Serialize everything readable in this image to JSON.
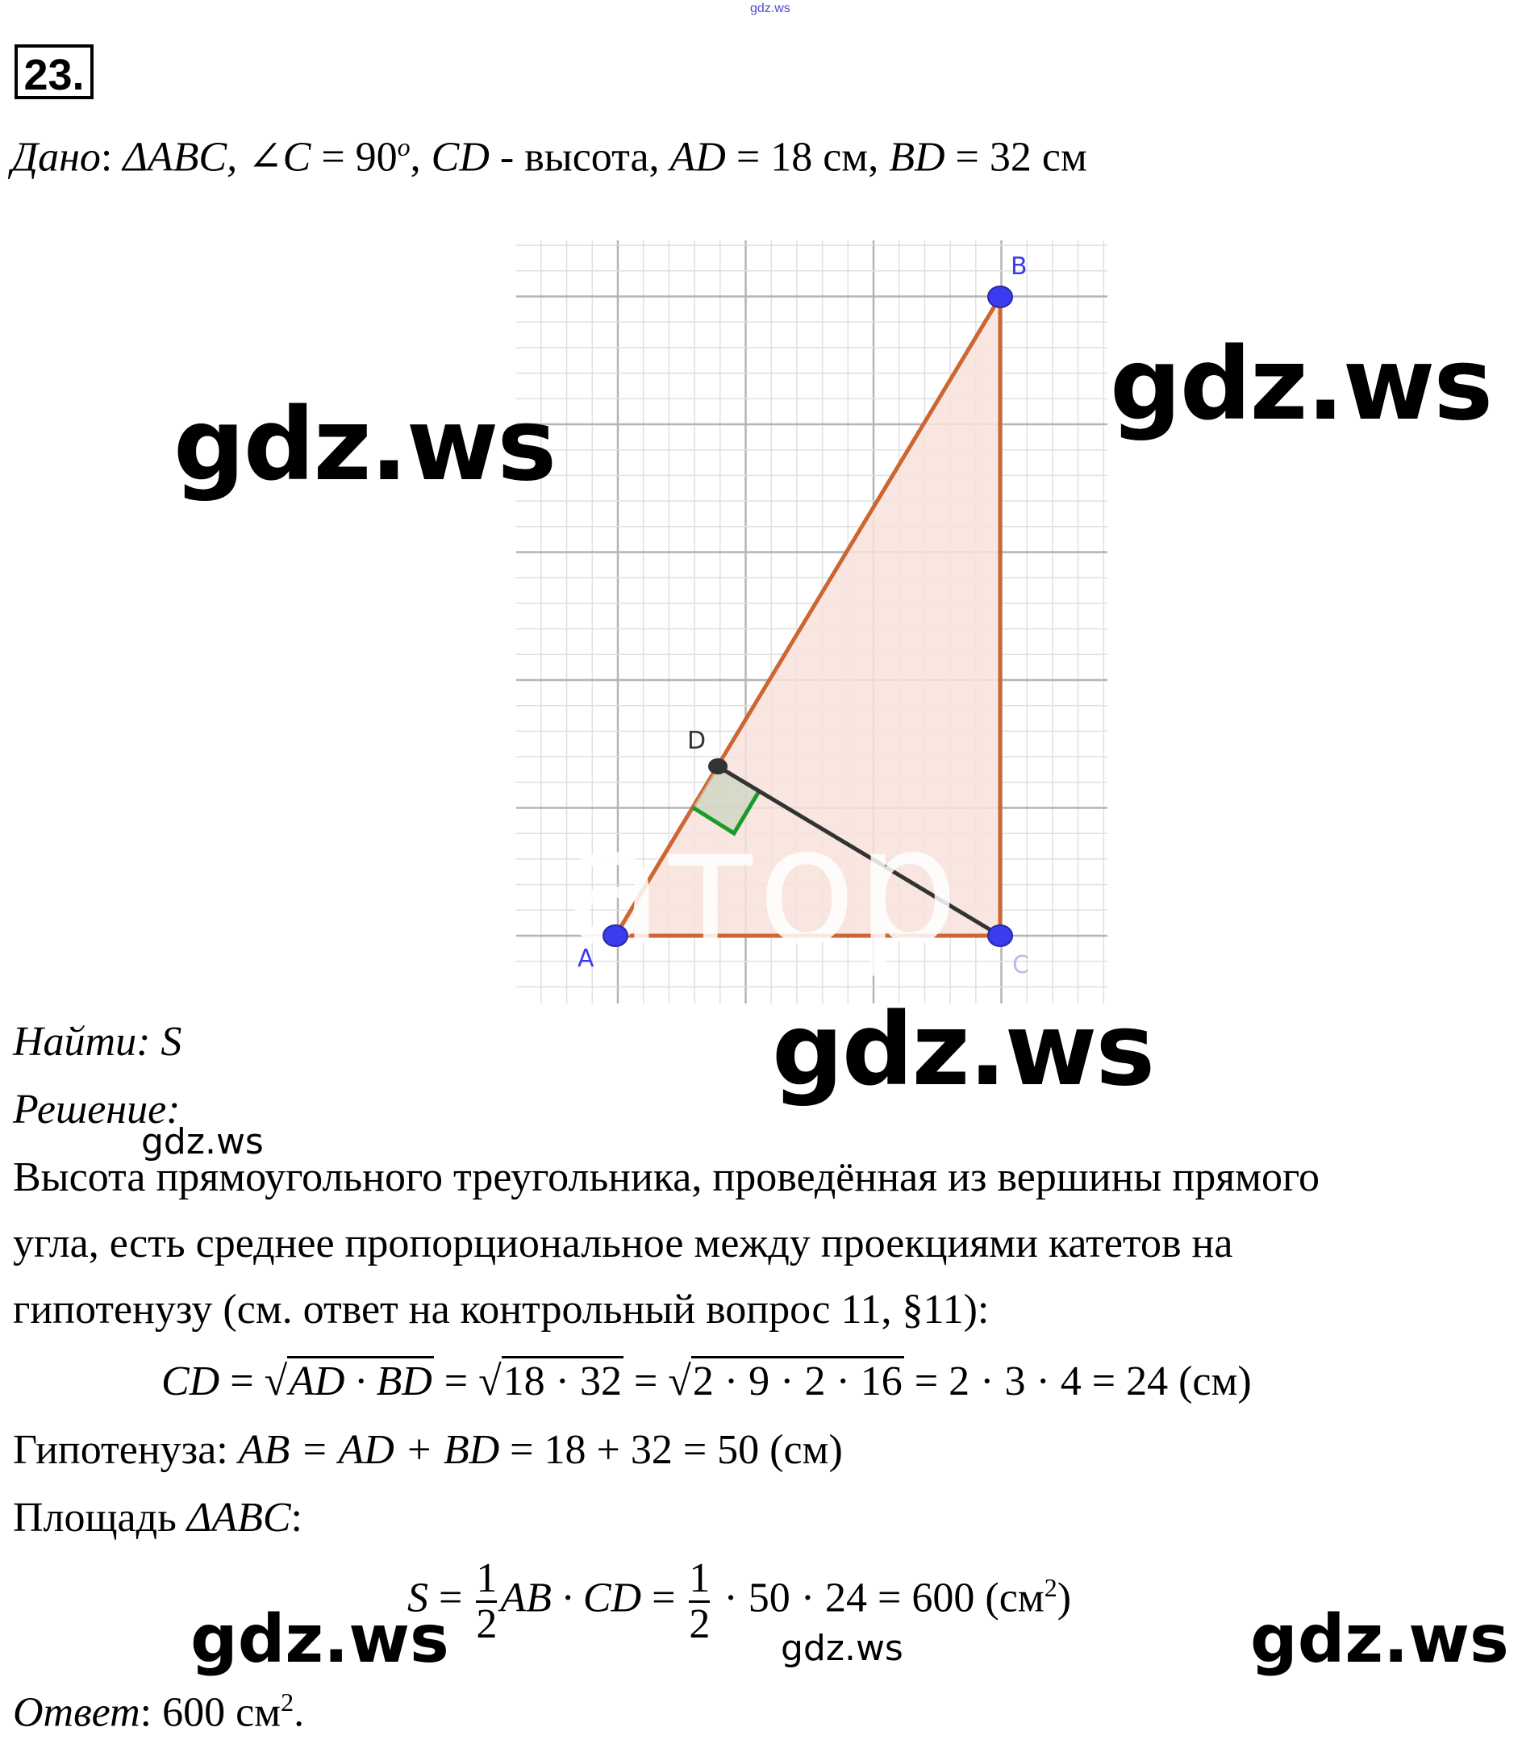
{
  "watermark_top": "gdz.ws",
  "problem_number": "23.",
  "given": {
    "label": "Дано",
    "text_parts": [
      ": ",
      "ΔABC, ∠C",
      " = 90",
      "o",
      ", ",
      "CD",
      " - высота, ",
      "AD",
      " = 18 см,  ",
      "BD",
      " = 32 см"
    ]
  },
  "diagram": {
    "points": {
      "A": "A",
      "B": "B",
      "C": "C",
      "D": "D"
    },
    "colors": {
      "triangle_stroke": "#cc6633",
      "triangle_fill": "#f8e2da",
      "point": "#3b3bf0",
      "point_D": "#333333",
      "height": "#333333",
      "right_angle": "#1a9a2a",
      "grid_major": "#b4b4b4",
      "grid_minor": "#e0e0e0"
    },
    "overlay_watermark": "атор"
  },
  "find": {
    "label": "Найти",
    "value": ": S"
  },
  "solution_label": "Решение:",
  "paragraph": [
    "Высота прямоугольного треугольника, проведённая из вершины прямого",
    "угла, есть среднее пропорциональное между проекциями катетов на",
    "гипотенузу (см. ответ на контрольный вопрос 11, §11):"
  ],
  "cd_formula": {
    "lhs": "CD",
    "eq": " = ",
    "r1": "AD · BD",
    "r2": "18 · 32",
    "r3": "2 · 9 · 2 · 16",
    "tail": " = 2 · 3 · 4 = 24 (см)"
  },
  "hypotenuse": {
    "label": "Гипотенуза: ",
    "formula": "AB = AD + BD",
    "tail": " = 18 + 32 = 50 (см)"
  },
  "area_label": {
    "label": "Площадь ",
    "tri": "ΔABC",
    "colon": ":"
  },
  "area_formula": {
    "lhs": "S",
    "eq": " = ",
    "num": "1",
    "den": "2",
    "mid": "AB · CD",
    "tail1": " · 50 · 24 = 600 (см",
    "sup": "2",
    "tail2": ")"
  },
  "answer": {
    "label": "Ответ",
    "value": ": 600 см",
    "sup": "2",
    "end": "."
  },
  "watermarks": [
    "gdz.ws",
    "gdz.ws",
    "gdz.ws",
    "gdz.ws",
    "gdz.ws",
    "gdz.ws",
    "gdz.ws"
  ]
}
